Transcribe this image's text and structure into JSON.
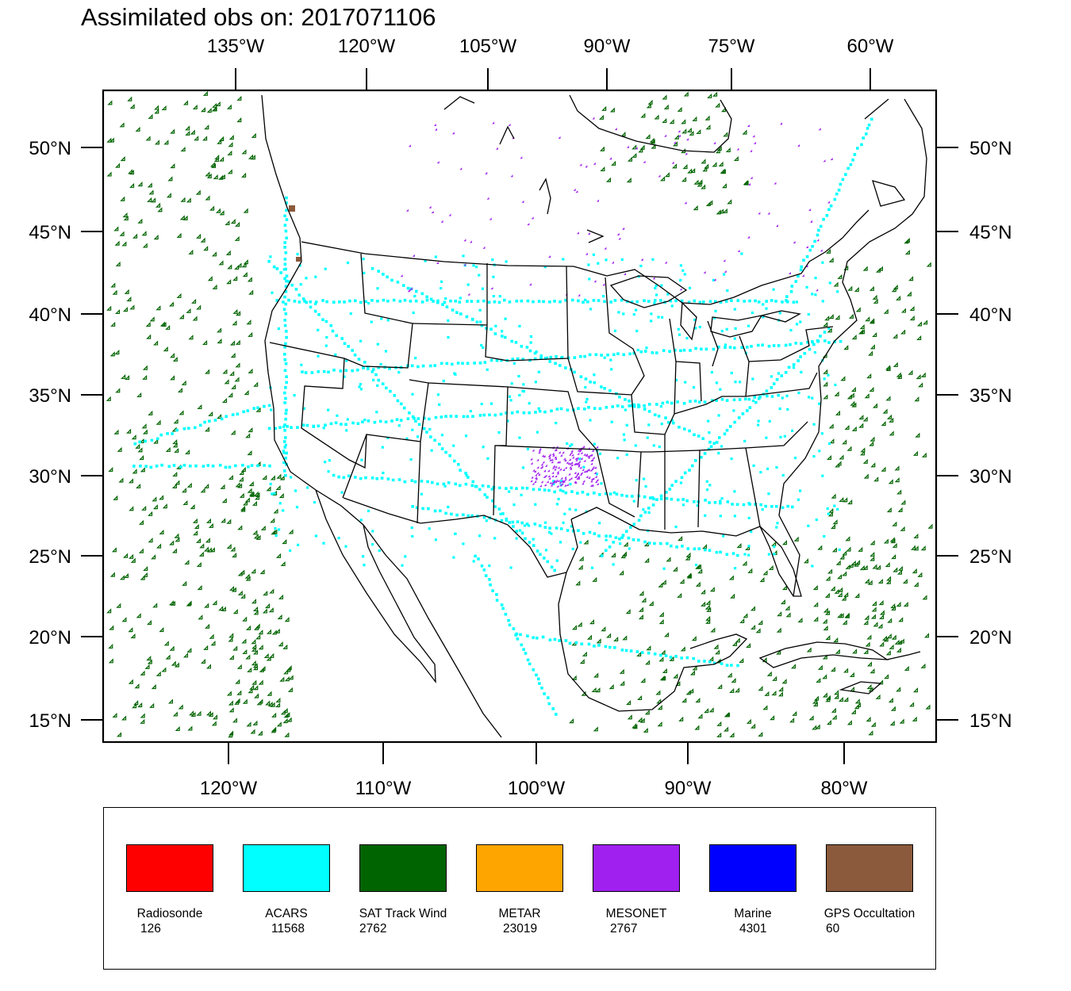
{
  "title": "Assimilated obs on: 2017071106",
  "top_lon_labels": [
    "135°W",
    "120°W",
    "105°W",
    "90°W",
    "75°W",
    "60°W"
  ],
  "bottom_lon_labels": [
    "120°W",
    "110°W",
    "100°W",
    "90°W",
    "80°W"
  ],
  "lat_labels": [
    "50°N",
    "45°N",
    "40°N",
    "35°N",
    "30°N",
    "25°N",
    "20°N",
    "15°N"
  ],
  "legend": [
    {
      "name": "Radiosonde",
      "count": "126",
      "color": "#ff0000"
    },
    {
      "name": "ACARS",
      "count": "11568",
      "color": "#00ffff"
    },
    {
      "name": "SAT Track Wind",
      "count": "2762",
      "color": "#006400"
    },
    {
      "name": "METAR",
      "count": "23019",
      "color": "#ffa500"
    },
    {
      "name": "MESONET",
      "count": "2767",
      "color": "#a020f0"
    },
    {
      "name": "Marine",
      "count": "4301",
      "color": "#0000ff"
    },
    {
      "name": "GPS Occultation",
      "count": "60",
      "color": "#8b5a3c"
    }
  ],
  "background_color": "#ffffff",
  "boundary_color": "#000000"
}
